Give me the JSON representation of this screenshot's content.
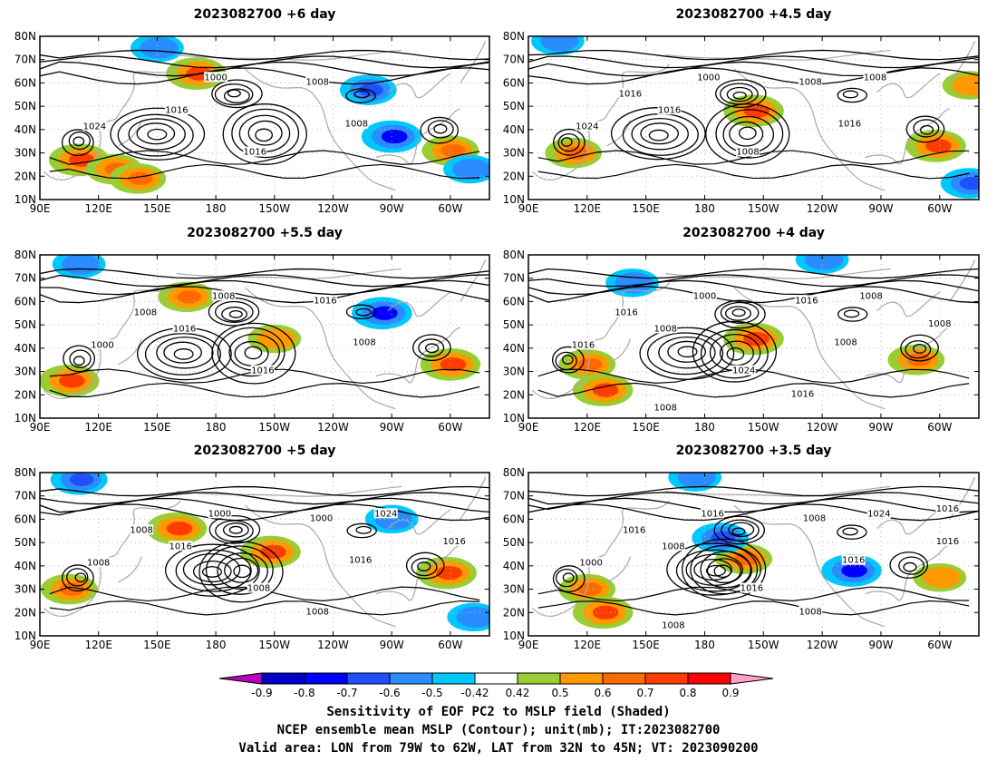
{
  "panels": [
    {
      "title": "2023082700 +6 day",
      "isobar_labels": [
        "1000",
        "1008",
        "1016",
        "1024",
        "1008",
        "1016"
      ],
      "shading": [
        {
          "lon": 170,
          "lat": 64,
          "v": 0.7
        },
        {
          "lon": 110,
          "lat": 27,
          "v": 0.7
        },
        {
          "lon": 128,
          "lat": 23,
          "v": 0.6
        },
        {
          "lon": 140,
          "lat": 19,
          "v": 0.6
        },
        {
          "lon": 300,
          "lat": 31,
          "v": 0.6
        },
        {
          "lon": 258,
          "lat": 57,
          "v": -0.6
        },
        {
          "lon": 270,
          "lat": 37,
          "v": -0.7
        },
        {
          "lon": 150,
          "lat": 75,
          "v": -0.5
        },
        {
          "lon": 310,
          "lat": 23,
          "v": -0.5
        }
      ]
    },
    {
      "title": "2023082700 +4.5 day",
      "isobar_labels": [
        "1000",
        "1008",
        "1016",
        "1024",
        "1016",
        "1008",
        "1016",
        "1008"
      ],
      "shading": [
        {
          "lon": 205,
          "lat": 48,
          "v": 0.7
        },
        {
          "lon": 113,
          "lat": 30,
          "v": 0.6
        },
        {
          "lon": 298,
          "lat": 33,
          "v": 0.7
        },
        {
          "lon": 315,
          "lat": 17,
          "v": -0.6
        },
        {
          "lon": 105,
          "lat": 78,
          "v": -0.5
        },
        {
          "lon": 315,
          "lat": 59,
          "v": 0.5
        }
      ]
    },
    {
      "title": "2023082700 +5.5 day",
      "isobar_labels": [
        "1008",
        "1016",
        "1016",
        "1000",
        "1008",
        "1016",
        "1008"
      ],
      "shading": [
        {
          "lon": 165,
          "lat": 62,
          "v": 0.6
        },
        {
          "lon": 105,
          "lat": 26,
          "v": 0.7
        },
        {
          "lon": 300,
          "lat": 33,
          "v": 0.7
        },
        {
          "lon": 265,
          "lat": 55,
          "v": -0.7
        },
        {
          "lon": 110,
          "lat": 76,
          "v": -0.5
        },
        {
          "lon": 210,
          "lat": 44,
          "v": 0.5
        }
      ]
    },
    {
      "title": "2023082700 +4 day",
      "isobar_labels": [
        "1000",
        "1016",
        "1008",
        "1016",
        "1008",
        "1024",
        "1016",
        "1008",
        "1008",
        "1016",
        "1008"
      ],
      "shading": [
        {
          "lon": 205,
          "lat": 44,
          "v": 0.7
        },
        {
          "lon": 120,
          "lat": 33,
          "v": 0.6
        },
        {
          "lon": 128,
          "lat": 22,
          "v": 0.7
        },
        {
          "lon": 288,
          "lat": 35,
          "v": 0.6
        },
        {
          "lon": 240,
          "lat": 78,
          "v": -0.5
        },
        {
          "lon": 143,
          "lat": 68,
          "v": -0.5
        }
      ]
    },
    {
      "title": "2023082700 +5 day",
      "isobar_labels": [
        "1000",
        "1000",
        "1016",
        "1008",
        "1016",
        "1008",
        "1008",
        "1024",
        "1016",
        "1008"
      ],
      "shading": [
        {
          "lon": 160,
          "lat": 56,
          "v": 0.7
        },
        {
          "lon": 208,
          "lat": 46,
          "v": 0.7
        },
        {
          "lon": 105,
          "lat": 30,
          "v": 0.6
        },
        {
          "lon": 298,
          "lat": 37,
          "v": 0.7
        },
        {
          "lon": 110,
          "lat": 77,
          "v": -0.6
        },
        {
          "lon": 270,
          "lat": 60,
          "v": -0.5
        },
        {
          "lon": 312,
          "lat": 18,
          "v": -0.5
        }
      ]
    },
    {
      "title": "2023082700 +3.5 day",
      "isobar_labels": [
        "1016",
        "1008",
        "1008",
        "1000",
        "1016",
        "1016",
        "1016",
        "1024",
        "1016",
        "1008",
        "1008",
        "1016"
      ],
      "shading": [
        {
          "lon": 120,
          "lat": 30,
          "v": 0.6
        },
        {
          "lon": 128,
          "lat": 20,
          "v": 0.7
        },
        {
          "lon": 200,
          "lat": 43,
          "v": 0.6
        },
        {
          "lon": 255,
          "lat": 38,
          "v": -0.7
        },
        {
          "lon": 188,
          "lat": 52,
          "v": -0.6
        },
        {
          "lon": 300,
          "lat": 35,
          "v": 0.5
        },
        {
          "lon": 175,
          "lat": 78,
          "v": -0.5
        }
      ]
    }
  ],
  "axes": {
    "lon_ticks": [
      "90E",
      "120E",
      "150E",
      "180",
      "150W",
      "120W",
      "90W",
      "60W"
    ],
    "lon_values": [
      90,
      120,
      150,
      180,
      210,
      240,
      270,
      300
    ],
    "lat_ticks": [
      "10N",
      "20N",
      "30N",
      "40N",
      "50N",
      "60N",
      "70N",
      "80N"
    ],
    "lat_values": [
      10,
      20,
      30,
      40,
      50,
      60,
      70,
      80
    ],
    "lon_range": [
      90,
      320
    ],
    "lat_range": [
      10,
      80
    ]
  },
  "colorbar": {
    "labels": [
      "-0.9",
      "-0.8",
      "-0.7",
      "-0.6",
      "-0.5",
      "-0.42",
      "0.42",
      "0.5",
      "0.6",
      "0.7",
      "0.8",
      "0.9"
    ],
    "colors": [
      "#bb00bb",
      "#0000c8",
      "#0000ff",
      "#1e50ff",
      "#2a8cff",
      "#00c8ff",
      "#ffffff",
      "#9acd32",
      "#ff9900",
      "#ff6a00",
      "#ff3c00",
      "#ff0000",
      "#ffa0c8"
    ]
  },
  "captions": {
    "line1": "Sensitivity of EOF PC2 to MSLP field (Shaded)",
    "line2": "NCEP ensemble mean MSLP (Contour); unit(mb); IT:2023082700",
    "line3": "Valid area: LON from 79W to 62W, LAT from 32N to 45N; VT: 2023090200"
  }
}
